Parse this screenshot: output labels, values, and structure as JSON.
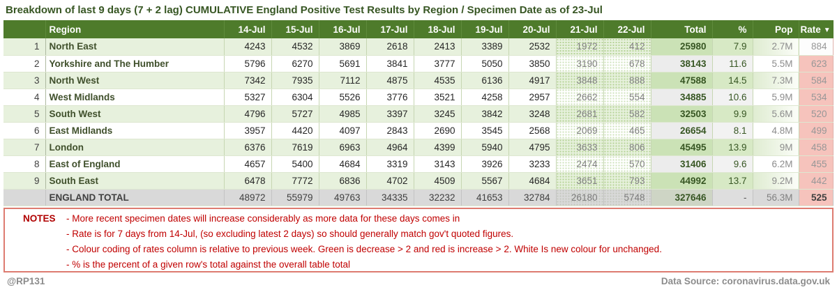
{
  "title": "Breakdown of last 9 days (7 + 2 lag) CUMULATIVE England Positive Test Results by Region / Specimen Date as of 23-Jul",
  "chart_data": {
    "type": "table",
    "title": "Breakdown of last 9 days (7 + 2 lag) CUMULATIVE England Positive Test Results by Region / Specimen Date as of 23-Jul",
    "columns": [
      "",
      "Region",
      "14-Jul",
      "15-Jul",
      "16-Jul",
      "17-Jul",
      "18-Jul",
      "19-Jul",
      "20-Jul",
      "21-Jul",
      "22-Jul",
      "Total",
      "%",
      "Pop",
      "Rate"
    ],
    "sort_icon": "▼",
    "lagged_columns": [
      "21-Jul",
      "22-Jul"
    ],
    "rows": [
      {
        "num": "1",
        "region": "North East",
        "values": [
          4243,
          4532,
          3869,
          2618,
          2413,
          3389,
          2532,
          1972,
          412
        ],
        "total": "25980",
        "pct": "7.9",
        "pop": "2.7M",
        "rate": "884",
        "rate_style": "white"
      },
      {
        "num": "2",
        "region": "Yorkshire and The Humber",
        "values": [
          5796,
          6270,
          5691,
          3841,
          3777,
          5050,
          3850,
          3190,
          678
        ],
        "total": "38143",
        "pct": "11.6",
        "pop": "5.5M",
        "rate": "623",
        "rate_style": "pink"
      },
      {
        "num": "3",
        "region": "North West",
        "values": [
          7342,
          7935,
          7112,
          4875,
          4535,
          6136,
          4917,
          3848,
          888
        ],
        "total": "47588",
        "pct": "14.5",
        "pop": "7.3M",
        "rate": "584",
        "rate_style": "pink"
      },
      {
        "num": "4",
        "region": "West Midlands",
        "values": [
          5327,
          6304,
          5526,
          3776,
          3521,
          4258,
          2957,
          2662,
          554
        ],
        "total": "34885",
        "pct": "10.6",
        "pop": "5.9M",
        "rate": "534",
        "rate_style": "pink"
      },
      {
        "num": "5",
        "region": "South West",
        "values": [
          4796,
          5727,
          4985,
          3397,
          3245,
          3842,
          3248,
          2681,
          582
        ],
        "total": "32503",
        "pct": "9.9",
        "pop": "5.6M",
        "rate": "520",
        "rate_style": "pink"
      },
      {
        "num": "6",
        "region": "East Midlands",
        "values": [
          3957,
          4420,
          4097,
          2843,
          2690,
          3545,
          2568,
          2069,
          465
        ],
        "total": "26654",
        "pct": "8.1",
        "pop": "4.8M",
        "rate": "499",
        "rate_style": "pink"
      },
      {
        "num": "7",
        "region": "London",
        "values": [
          6376,
          7619,
          6963,
          4964,
          4399,
          5940,
          4795,
          3633,
          806
        ],
        "total": "45495",
        "pct": "13.9",
        "pop": "9M",
        "rate": "458",
        "rate_style": "pink"
      },
      {
        "num": "8",
        "region": "East of England",
        "values": [
          4657,
          5400,
          4684,
          3319,
          3143,
          3926,
          3233,
          2474,
          570
        ],
        "total": "31406",
        "pct": "9.6",
        "pop": "6.2M",
        "rate": "455",
        "rate_style": "pink"
      },
      {
        "num": "9",
        "region": "South East",
        "values": [
          6478,
          7772,
          6836,
          4702,
          4509,
          5567,
          4684,
          3651,
          793
        ],
        "total": "44992",
        "pct": "13.7",
        "pop": "9.2M",
        "rate": "442",
        "rate_style": "pink"
      }
    ],
    "total_row": {
      "num": "",
      "region": "ENGLAND TOTAL",
      "values": [
        48972,
        55979,
        49763,
        34335,
        32232,
        41653,
        32784,
        26180,
        5748
      ],
      "total": "327646",
      "pct": "-",
      "pop": "56.3M",
      "rate": "525",
      "rate_style": "pink"
    }
  },
  "notes": {
    "label": "NOTES",
    "lines": [
      "- More recent specimen dates will increase considerably as more data for these days comes in",
      "- Rate is for 7 days from 14-Jul, (so excluding latest 2 days) so should generally match gov't quoted figures.",
      "- Colour coding of rates column is relative to previous week. Green is decrease > 2 and red is increase > 2. White Is new colour for unchanged.",
      "- % is the percent of a given row's total against the overall table total"
    ]
  },
  "footer": {
    "handle": "@RP131",
    "source": "Data Source: coronavirus.data.gov.uk"
  },
  "colors": {
    "header_green": "#4e7b2b",
    "title_green": "#375623",
    "row_stripe_green": "#e7f1dd",
    "total_col_green": "#cbe2b6",
    "total_col_gray": "#ececec",
    "rate_pink": "#f6c3bc",
    "total_row_gray": "#d9d9d9",
    "notes_red": "#c00000",
    "notes_border_red": "#dd7b70",
    "footer_gray": "#8c8c8c"
  }
}
